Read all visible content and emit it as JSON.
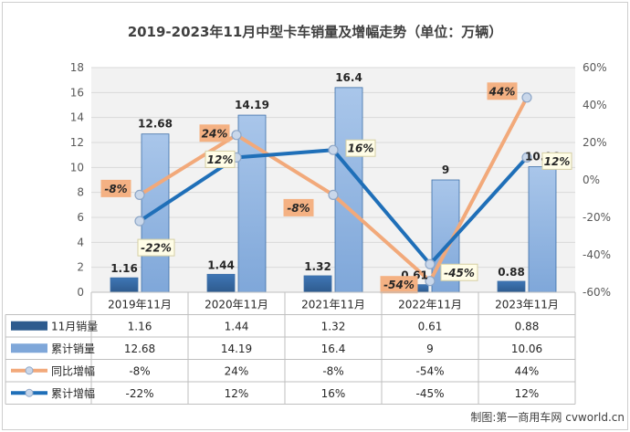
{
  "chart_data": {
    "type": "bar",
    "title": "2019-2023年11月中型卡车销量及增幅走势（单位：万辆）",
    "categories": [
      "2019年11月",
      "2020年11月",
      "2021年11月",
      "2022年11月",
      "2023年11月"
    ],
    "ylim": [
      0,
      18
    ],
    "y2lim": [
      -60,
      60
    ],
    "yticks": [
      "0",
      "2",
      "4",
      "6",
      "8",
      "10",
      "12",
      "14",
      "16",
      "18"
    ],
    "y2ticks": [
      "-60%",
      "-40%",
      "-20%",
      "0%",
      "20%",
      "40%",
      "60%"
    ],
    "grid": true,
    "series": [
      {
        "name": "11月销量",
        "type": "bar",
        "axis": "left",
        "color": "#2E5B8E",
        "values": [
          1.16,
          1.44,
          1.32,
          0.61,
          0.88
        ],
        "labels": [
          "1.16",
          "1.44",
          "1.32",
          "0.61",
          "0.88"
        ]
      },
      {
        "name": "累计销量",
        "type": "bar",
        "axis": "left",
        "color": "#7FA7D9",
        "values": [
          12.68,
          14.19,
          16.4,
          9,
          10.06
        ],
        "labels": [
          "12.68",
          "14.19",
          "16.4",
          "9",
          "10.06"
        ]
      },
      {
        "name": "同比增幅",
        "type": "line",
        "axis": "right",
        "color": "#F2A97A",
        "values": [
          -8,
          24,
          -8,
          -54,
          44
        ],
        "labels": [
          "-8%",
          "24%",
          "-8%",
          "-54%",
          "44%"
        ]
      },
      {
        "name": "累计增幅",
        "type": "line",
        "axis": "right",
        "color": "#1F6FB8",
        "values": [
          -22,
          12,
          16,
          -45,
          12
        ],
        "labels": [
          "-22%",
          "12%",
          "16%",
          "-45%",
          "12%"
        ]
      }
    ],
    "credit": "制图:第一商用车网 cvworld.cn"
  }
}
